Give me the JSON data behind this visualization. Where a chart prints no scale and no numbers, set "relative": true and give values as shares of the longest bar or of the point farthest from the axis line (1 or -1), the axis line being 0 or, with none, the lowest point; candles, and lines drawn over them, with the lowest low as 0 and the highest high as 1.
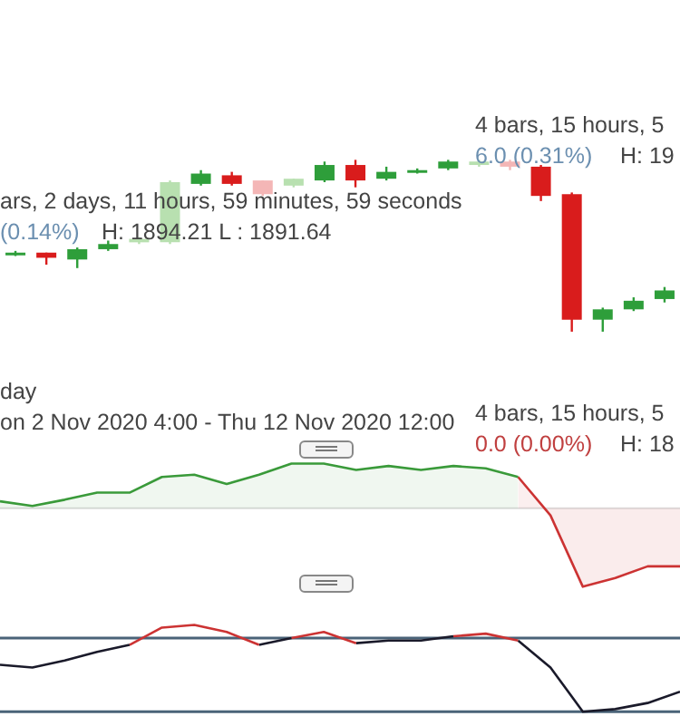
{
  "chart_data": [
    {
      "type": "candlestick",
      "relative": true,
      "categories": [
        null,
        null,
        null,
        null,
        null,
        null,
        null,
        null,
        null,
        null,
        null,
        null,
        null,
        null,
        null,
        null,
        null,
        null,
        null,
        null,
        null,
        null
      ],
      "ohlc": [
        [
          0.45,
          0.47,
          0.44,
          0.46
        ],
        [
          0.46,
          0.46,
          0.39,
          0.43
        ],
        [
          0.42,
          0.49,
          0.37,
          0.48
        ],
        [
          0.48,
          0.53,
          0.47,
          0.51
        ],
        [
          0.52,
          0.55,
          0.51,
          0.54
        ],
        [
          0.52,
          0.88,
          0.51,
          0.87
        ],
        [
          0.86,
          0.94,
          0.85,
          0.92
        ],
        [
          0.91,
          0.93,
          0.85,
          0.86
        ],
        [
          0.88,
          0.88,
          0.79,
          0.8
        ],
        [
          0.85,
          0.89,
          0.84,
          0.89
        ],
        [
          0.88,
          0.99,
          0.87,
          0.97
        ],
        [
          0.97,
          1,
          0.84,
          0.88
        ],
        [
          0.89,
          0.96,
          0.88,
          0.93
        ],
        [
          0.93,
          0.95,
          0.92,
          0.94
        ],
        [
          0.95,
          1,
          0.94,
          0.99
        ],
        [
          0.97,
          1,
          0.96,
          0.99
        ],
        [
          0.99,
          1,
          0.94,
          0.96
        ],
        [
          0.96,
          0.97,
          0.76,
          0.79
        ],
        [
          0.8,
          0.81,
          0,
          0.07
        ],
        [
          0.07,
          0.14,
          0,
          0.13
        ],
        [
          0.13,
          0.2,
          0.12,
          0.18
        ],
        [
          0.19,
          0.26,
          0.17,
          0.24
        ]
      ],
      "colors": [
        "#2e9e3a",
        "#d91c1c",
        "#2e9e3a",
        "#2e9e3a",
        "#b8e0b0",
        "#b8e0b0",
        "#2e9e3a",
        "#d91c1c",
        "#f4b6b6",
        "#b8e0b0",
        "#2e9e3a",
        "#d91c1c",
        "#2e9e3a",
        "#2e9e3a",
        "#2e9e3a",
        "#b8e0b0",
        "#f4b6b6",
        "#d91c1c",
        "#d91c1c",
        "#2e9e3a",
        "#2e9e3a",
        "#2e9e3a"
      ],
      "annotations": [
        "ars, 2 days, 11 hours, 59 minutes, 59 seconds",
        "(0.14%)",
        "H: 1894.21 L : 1891.64",
        "4 bars, 15 hours, 5",
        "6.0 (0.31%)",
        "H: 19"
      ]
    },
    {
      "type": "area",
      "relative": true,
      "categories": [
        null,
        null,
        null,
        null,
        null,
        null,
        null,
        null,
        null,
        null,
        null,
        null,
        null,
        null,
        null,
        null,
        null,
        null,
        null,
        null,
        null,
        null
      ],
      "series": [
        {
          "color": "#3a9a3a",
          "values": [
            0.09,
            0.03,
            0.11,
            0.2,
            0.2,
            0.4,
            0.43,
            0.31,
            0.43,
            0.57,
            0.57,
            0.49,
            0.54,
            0.49,
            0.54,
            0.51,
            0.4,
            null,
            null,
            null,
            null,
            null
          ]
        },
        {
          "color": "#cc3333",
          "values": [
            null,
            null,
            null,
            null,
            null,
            null,
            null,
            null,
            null,
            null,
            null,
            null,
            null,
            null,
            null,
            null,
            0.4,
            -0.09,
            -1,
            -0.89,
            -0.74,
            -0.74
          ]
        }
      ],
      "annotations": [
        "day",
        "on 2 Nov 2020 4:00 - Thu 12 Nov 2020 12:00",
        "4 bars, 15 hours, 5",
        "0.0 (0.00%)",
        "H: 18"
      ]
    },
    {
      "type": "line",
      "relative": true,
      "categories": [
        null,
        null,
        null,
        null,
        null,
        null,
        null,
        null,
        null,
        null,
        null,
        null,
        null,
        null,
        null,
        null,
        null,
        null,
        null,
        null,
        null,
        null
      ],
      "series": [
        {
          "color": "#1a1a2a",
          "values": [
            0.54,
            0.51,
            0.59,
            0.69,
            0.77,
            null,
            null,
            null,
            null,
            null,
            null,
            null,
            null,
            null,
            null,
            null,
            null,
            null,
            null,
            null,
            null,
            null
          ]
        },
        {
          "color": "#cc3333",
          "values": [
            null,
            null,
            null,
            null,
            0.77,
            0.97,
            1,
            0.92,
            0.77,
            null,
            null,
            null,
            null,
            null,
            null,
            null,
            null,
            null,
            null,
            null,
            null,
            null
          ]
        },
        {
          "color": "#1a1a2a",
          "values": [
            null,
            null,
            null,
            null,
            null,
            null,
            null,
            null,
            0.77,
            0.85,
            null,
            null,
            null,
            null,
            null,
            null,
            null,
            null,
            null,
            null,
            null,
            null
          ]
        },
        {
          "color": "#cc3333",
          "values": [
            null,
            null,
            null,
            null,
            null,
            null,
            null,
            null,
            null,
            0.85,
            0.92,
            0.79,
            null,
            null,
            null,
            null,
            null,
            null,
            null,
            null,
            null,
            null
          ]
        },
        {
          "color": "#1a1a2a",
          "values": [
            null,
            null,
            null,
            null,
            null,
            null,
            null,
            null,
            null,
            null,
            null,
            0.79,
            0.82,
            0.82,
            0.87,
            null,
            null,
            null,
            null,
            null,
            null,
            null
          ]
        },
        {
          "color": "#cc3333",
          "values": [
            null,
            null,
            null,
            null,
            null,
            null,
            null,
            null,
            null,
            null,
            null,
            null,
            null,
            null,
            0.87,
            0.9,
            0.82,
            null,
            null,
            null,
            null,
            null
          ]
        },
        {
          "color": "#1a1a2a",
          "values": [
            null,
            null,
            null,
            null,
            null,
            null,
            null,
            null,
            null,
            null,
            null,
            null,
            null,
            null,
            null,
            null,
            0.82,
            0.51,
            0,
            0.03,
            0.1,
            0.23
          ]
        }
      ],
      "ref_lines": [
        {
          "axis": "y",
          "value": 0.85,
          "color": "#4a6378"
        },
        {
          "axis": "y",
          "value": 0,
          "color": "#4a6378"
        }
      ]
    }
  ]
}
